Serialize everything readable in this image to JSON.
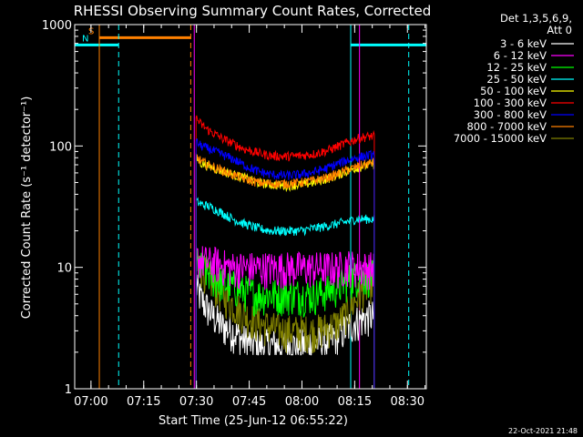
{
  "colors": {
    "background": "#000000",
    "foreground": "#ffffff",
    "s_flag": "#ff8000",
    "n_flag": "#00ffff"
  },
  "chart_data": {
    "type": "line",
    "title": "RHESSI Observing Summary Count Rates, Corrected",
    "xlabel": "Start Time (25-Jun-12 06:55:22)",
    "ylabel": "Corrected Count Rate (s⁻¹ detector⁻¹)",
    "y_scale": "log",
    "ylim": [
      1,
      1000
    ],
    "x_ticks": [
      "07:00",
      "07:15",
      "07:30",
      "07:45",
      "08:00",
      "08:15",
      "08:30"
    ],
    "x_tick_minutes": [
      4.63,
      19.63,
      34.63,
      49.63,
      64.63,
      79.63,
      94.63
    ],
    "xlim_minutes": [
      0,
      100
    ],
    "y_ticks": [
      "1",
      "10",
      "100",
      "1000"
    ],
    "y_tick_values": [
      1,
      10,
      100,
      1000
    ],
    "legend_header": [
      "Det 1,3,5,6,9,",
      "Att 0"
    ],
    "legend_position": "right",
    "x_minutes": [
      34.5,
      36,
      38,
      40,
      42,
      45,
      48,
      52,
      56,
      60,
      64,
      68,
      72,
      75,
      78,
      80,
      82,
      84,
      85.2
    ],
    "series": [
      {
        "name": "3 - 6 keV",
        "color": "#ffffff",
        "values": [
          7,
          5.5,
          4.5,
          3.8,
          3.3,
          3,
          2.5,
          2.3,
          2.3,
          2.3,
          2.3,
          2.4,
          2.5,
          2.8,
          3.3,
          3.6,
          3.8,
          4,
          4
        ]
      },
      {
        "name": "6 - 12 keV",
        "color": "#ff00ff",
        "values": [
          12,
          11.5,
          11,
          11,
          10.5,
          10,
          10,
          10,
          10,
          10,
          10,
          10,
          10,
          10,
          10.5,
          10,
          10,
          10,
          10
        ]
      },
      {
        "name": "12 - 25 keV",
        "color": "#00ff00",
        "values": [
          11,
          10,
          9,
          8,
          7.5,
          7,
          6.5,
          6,
          6,
          6,
          6,
          6,
          6.5,
          7,
          8,
          8.5,
          8.5,
          8.5,
          8.5
        ]
      },
      {
        "name": "25 - 50 keV",
        "color": "#00ffff",
        "values": [
          35,
          33,
          32,
          30,
          28,
          25,
          23,
          21,
          20,
          20,
          20,
          21,
          22,
          23,
          24,
          25,
          25,
          25,
          25
        ]
      },
      {
        "name": "50 - 100 keV",
        "color": "#ffff00",
        "values": [
          80,
          72,
          68,
          65,
          62,
          58,
          55,
          50,
          48,
          47,
          48,
          50,
          54,
          58,
          63,
          66,
          68,
          70,
          72
        ]
      },
      {
        "name": "100 - 300 keV",
        "color": "#ff0000",
        "values": [
          170,
          150,
          135,
          125,
          115,
          105,
          95,
          88,
          83,
          82,
          83,
          86,
          92,
          100,
          108,
          114,
          118,
          120,
          120
        ]
      },
      {
        "name": "300 - 800 keV",
        "color": "#0000ff",
        "values": [
          108,
          100,
          95,
          90,
          85,
          78,
          70,
          62,
          58,
          57,
          58,
          61,
          66,
          72,
          77,
          80,
          82,
          84,
          85
        ]
      },
      {
        "name": "800 - 7000 keV",
        "color": "#ff8000",
        "values": [
          82,
          75,
          70,
          66,
          63,
          58,
          54,
          50,
          49,
          49,
          50,
          52,
          55,
          59,
          64,
          67,
          70,
          72,
          74
        ]
      },
      {
        "name": "7000 - 15000 keV",
        "color": "#808000",
        "values": [
          12,
          10,
          8.5,
          7,
          6,
          5,
          4.2,
          3.5,
          3.2,
          3,
          3,
          3,
          3.2,
          3.5,
          4.5,
          5.5,
          6.5,
          7.5,
          8
        ]
      }
    ],
    "flags": [
      {
        "label": "S",
        "color": "#ff8000",
        "start_minute": 7.0,
        "end_minute": 33.0,
        "level": 780
      },
      {
        "label": "N",
        "color": "#00ffff",
        "segments": [
          [
            0,
            12.5
          ],
          [
            78.5,
            100
          ]
        ],
        "level": 680
      }
    ],
    "vertical_markers": [
      {
        "minute": 7.0,
        "color": "#ff8000",
        "style": "solid"
      },
      {
        "minute": 12.5,
        "color": "#00ffff",
        "style": "dashed"
      },
      {
        "minute": 33.0,
        "color": "#ff8000",
        "style": "dashed"
      },
      {
        "minute": 78.5,
        "color": "#00ffff",
        "style": "solid"
      },
      {
        "minute": 95.0,
        "color": "#00ffff",
        "style": "dashed"
      },
      {
        "minute": 34.0,
        "color": "#ff00ff",
        "style": "solid"
      },
      {
        "minute": 81.0,
        "color": "#ff00ff",
        "style": "solid"
      }
    ],
    "footer_timestamp": "22-Oct-2021 21:48"
  }
}
